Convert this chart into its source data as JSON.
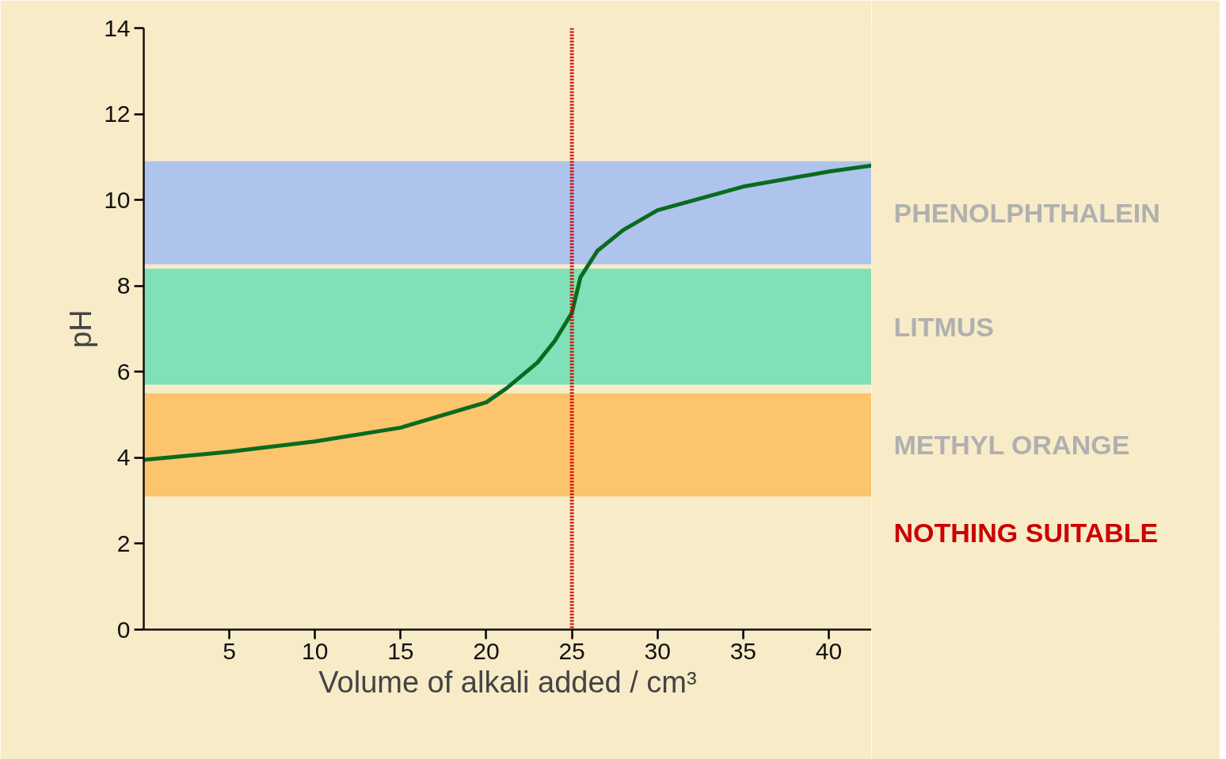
{
  "chart_data": {
    "type": "line",
    "xlabel": "Volume of alkali added / cm³",
    "ylabel": "pH",
    "x": [
      0,
      5,
      10,
      15,
      20,
      21.2,
      23,
      24,
      25,
      25.5,
      26.5,
      28,
      30,
      35,
      40,
      42.5
    ],
    "series": [
      {
        "color": "#0a6b1e",
        "values": [
          3.95,
          4.14,
          4.38,
          4.7,
          5.29,
          5.62,
          6.22,
          6.72,
          7.37,
          8.2,
          8.82,
          9.3,
          9.76,
          10.31,
          10.66,
          10.8
        ]
      }
    ],
    "xlim": [
      0,
      42.5
    ],
    "ylim": [
      0,
      14
    ],
    "xticks": [
      5,
      10,
      15,
      20,
      25,
      30,
      35,
      40
    ],
    "yticks": [
      0,
      2,
      4,
      6,
      8,
      10,
      12,
      14
    ],
    "bands": [
      {
        "axis": "y",
        "from": 8.5,
        "to": 10.9,
        "label": "PHENOLPHTHALEIN",
        "color": "#aec4ec"
      },
      {
        "axis": "y",
        "from": 5.7,
        "to": 8.4,
        "label": "LITMUS",
        "color": "#80e0b8"
      },
      {
        "axis": "y",
        "from": 3.1,
        "to": 5.5,
        "label": "METHYL ORANGE",
        "color": "#fcc46c"
      }
    ],
    "ref_lines": [
      {
        "axis": "x",
        "value": 25,
        "color": "#d00000",
        "line_style": "dotted"
      }
    ],
    "annotations": [
      "NOTHING SUITABLE"
    ],
    "grid": false,
    "marker": "none",
    "line_style": "solid"
  }
}
